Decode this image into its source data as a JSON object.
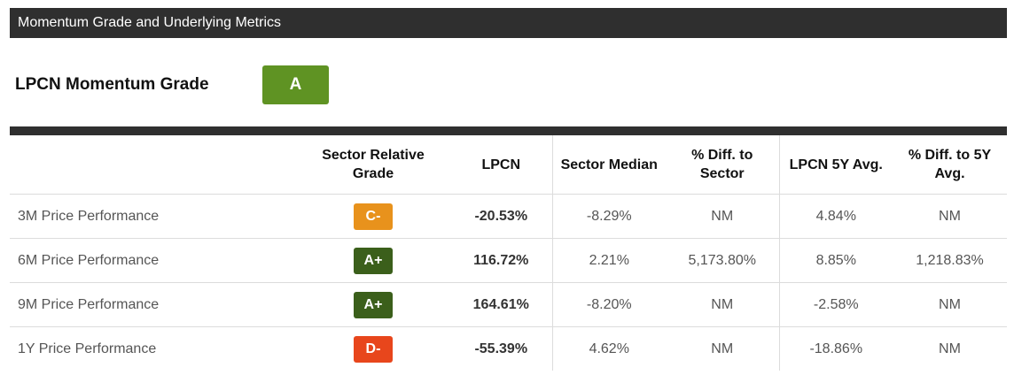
{
  "header": {
    "title": "Momentum Grade and Underlying Metrics"
  },
  "grade": {
    "label": "LPCN Momentum Grade",
    "value": "A",
    "color": "#5f9323"
  },
  "table": {
    "columns": [
      "",
      "Sector Relative Grade",
      "LPCN",
      "Sector Median",
      "% Diff. to Sector",
      "LPCN 5Y Avg.",
      "% Diff. to 5Y Avg."
    ],
    "rows": [
      {
        "metric": "3M Price Performance",
        "grade": "C-",
        "grade_color": "#e8921c",
        "lpcn": "-20.53%",
        "sector_median": "-8.29%",
        "diff_sector": "NM",
        "avg_5y": "4.84%",
        "diff_5y": "NM"
      },
      {
        "metric": "6M Price Performance",
        "grade": "A+",
        "grade_color": "#3b5f1b",
        "lpcn": "116.72%",
        "sector_median": "2.21%",
        "diff_sector": "5,173.80%",
        "avg_5y": "8.85%",
        "diff_5y": "1,218.83%"
      },
      {
        "metric": "9M Price Performance",
        "grade": "A+",
        "grade_color": "#3b5f1b",
        "lpcn": "164.61%",
        "sector_median": "-8.20%",
        "diff_sector": "NM",
        "avg_5y": "-2.58%",
        "diff_5y": "NM"
      },
      {
        "metric": "1Y Price Performance",
        "grade": "D-",
        "grade_color": "#e8461c",
        "lpcn": "-55.39%",
        "sector_median": "4.62%",
        "diff_sector": "NM",
        "avg_5y": "-18.86%",
        "diff_5y": "NM"
      }
    ]
  }
}
